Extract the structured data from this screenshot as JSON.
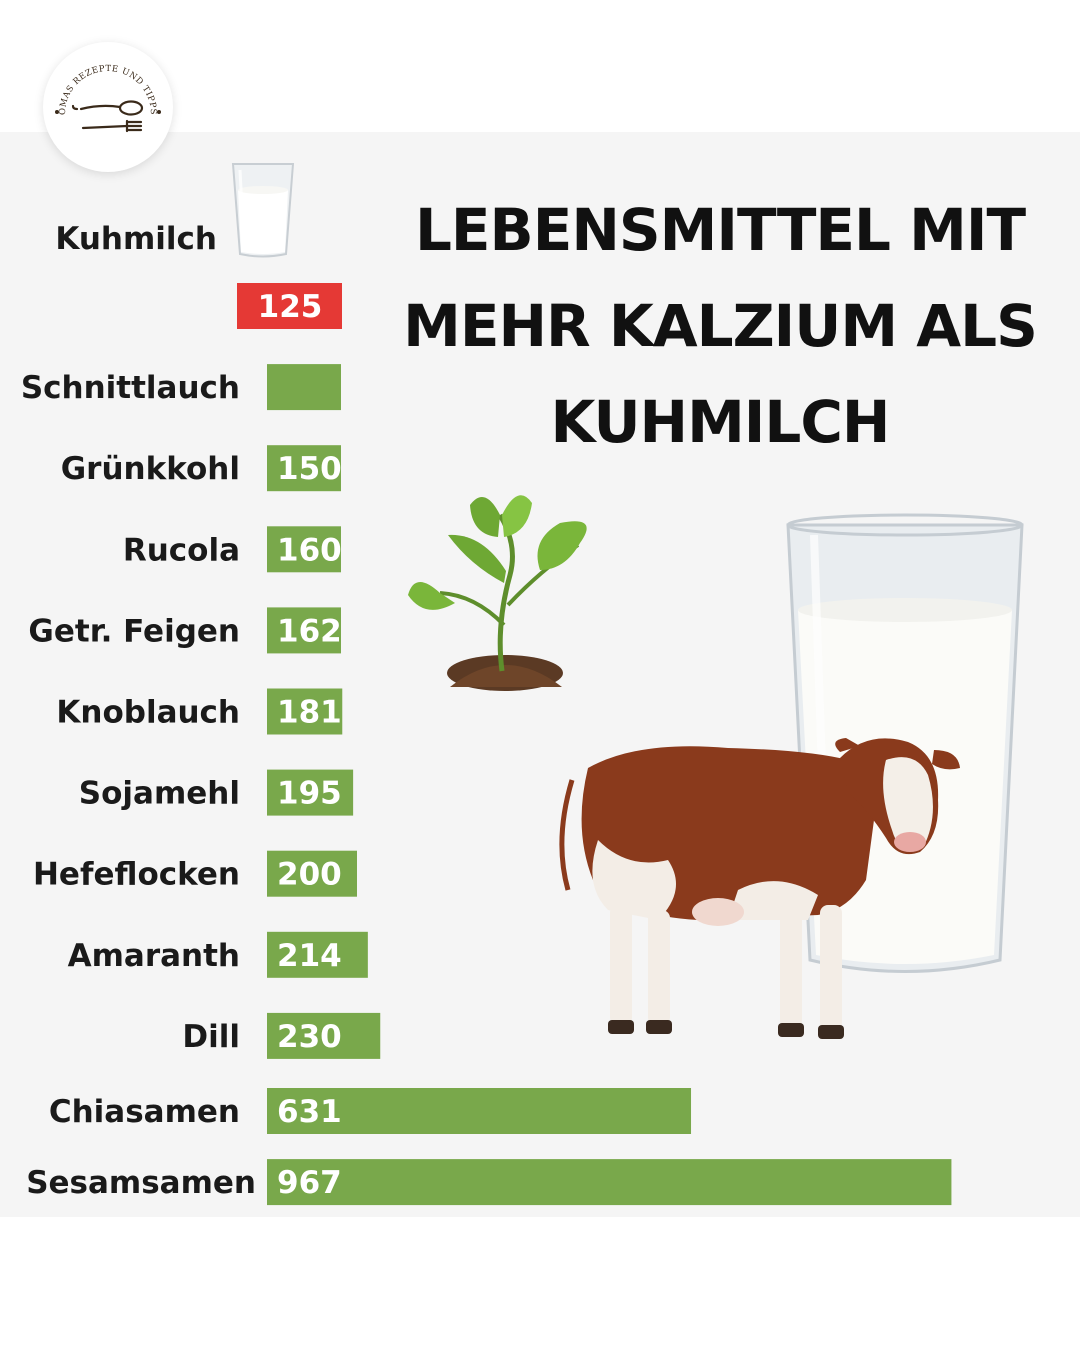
{
  "title": {
    "lines": [
      "LEBENSMITTEL MIT",
      "MEHR KALZIUM ALS",
      "KUHMILCH"
    ]
  },
  "logo": {
    "text": "OMAS REZEPTE UND TIPPS",
    "icon": "spoon-fork-icon"
  },
  "reference": {
    "label": "Kuhmilch",
    "icon": "milk-glass-icon"
  },
  "colors": {
    "reference": "#e53935",
    "bars": "#79a84b",
    "text": "#1a1a1a",
    "panel": "#f5f5f5"
  },
  "chart_data": {
    "type": "bar",
    "orientation": "horizontal",
    "reference": {
      "value": 125,
      "color": "#e53935"
    },
    "categories": [
      "Schnittlauch",
      "Grünkkohl",
      "Rucola",
      "Getr. Feigen",
      "Knoblauch",
      "Sojamehl",
      "Hefeflocken",
      "Amaranth",
      "Dill",
      "Chiasamen",
      "Sesamsamen"
    ],
    "values": [
      null,
      150,
      160,
      162,
      181,
      195,
      200,
      214,
      230,
      631,
      967
    ],
    "value_labels": [
      "",
      "150",
      "160",
      "162",
      "181",
      "195",
      "200",
      "214",
      "230",
      "631",
      "967"
    ],
    "grid": false
  }
}
